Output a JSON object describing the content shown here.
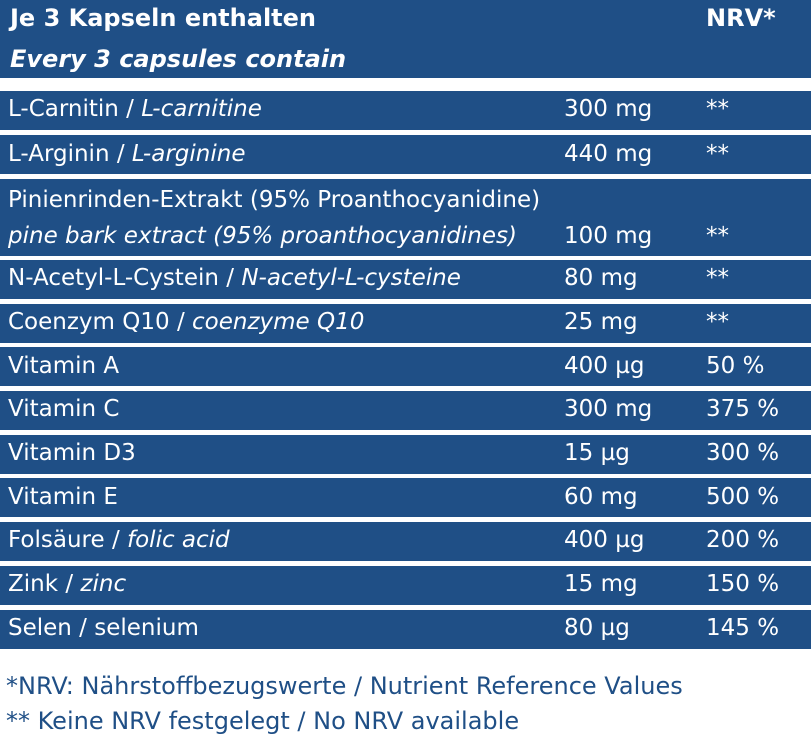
{
  "header": {
    "title_de": "Je 3 Kapseln enthalten",
    "title_en": "Every 3 capsules contain",
    "nrv_label": "NRV*"
  },
  "rows": [
    {
      "name_de": "L-Carnitin",
      "sep": " / ",
      "name_en": "L-carnitine",
      "amount": "300 mg",
      "nrv": "**"
    },
    {
      "name_de": "L-Arginin",
      "sep": " / ",
      "name_en": "L-arginine",
      "amount": "440 mg",
      "nrv": "**"
    },
    {
      "name_de": "Pinienrinden-Extrakt (95% Proanthocyanidine)",
      "name_en": "pine bark extract (95% proanthocyanidines)",
      "amount": "100 mg",
      "nrv": "**"
    },
    {
      "name_de": "N-Acetyl-L-Cystein",
      "sep": " / ",
      "name_en": "N-acetyl-L-cysteine",
      "amount": "80 mg",
      "nrv": "**"
    },
    {
      "name_de": "Coenzym Q10",
      "sep": " / ",
      "name_en": "coenzyme Q10",
      "amount": "25 mg",
      "nrv": "**"
    },
    {
      "name_de": "Vitamin A",
      "amount": "400 µg",
      "nrv": "50 %"
    },
    {
      "name_de": "Vitamin C",
      "amount": "300 mg",
      "nrv": "375 %"
    },
    {
      "name_de": "Vitamin D3",
      "amount": "15 µg",
      "nrv": "300 %"
    },
    {
      "name_de": "Vitamin E",
      "amount": "60 mg",
      "nrv": "500 %"
    },
    {
      "name_de": "Folsäure",
      "sep": " / ",
      "name_en": "folic acid",
      "amount": "400 µg",
      "nrv": "200 %"
    },
    {
      "name_de": "Zink",
      "sep": " / ",
      "name_en": "zinc",
      "amount": "15 mg",
      "nrv": "150 %"
    },
    {
      "name_de": "Selen / selenium",
      "amount": "80 µg",
      "nrv": "145 %"
    }
  ],
  "footer": {
    "line1": "*NRV: Nährstoffbezugswerte / Nutrient Reference Values",
    "line2": "** Keine NRV festgelegt / No NRV available"
  }
}
